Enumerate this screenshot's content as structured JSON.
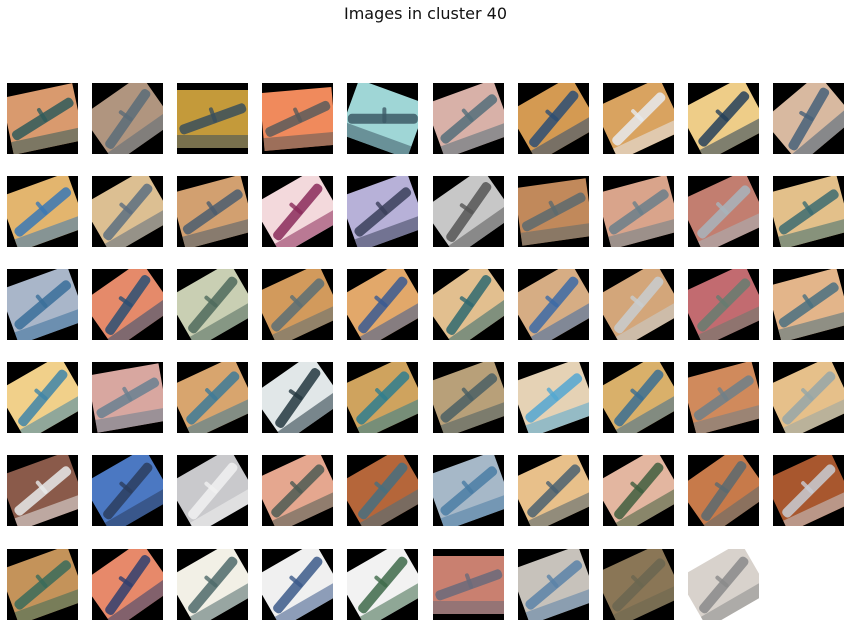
{
  "title": "Images in cluster 40",
  "tiles": [
    {
      "bg": "#d99a6e",
      "fg": "#2f5b5b",
      "angle": -12,
      "frame": "black"
    },
    {
      "bg": "#b0957f",
      "fg": "#5b6c78",
      "angle": -35,
      "frame": "black"
    },
    {
      "bg": "#c49a3a",
      "fg": "#3a4f5c",
      "angle": 0,
      "frame": "black"
    },
    {
      "bg": "#f08a5c",
      "fg": "#5a5a5a",
      "angle": -5,
      "frame": "black"
    },
    {
      "bg": "#9fd6d6",
      "fg": "#3c5a66",
      "angle": 20,
      "frame": "black"
    },
    {
      "bg": "#d8b1a8",
      "fg": "#556f7a",
      "angle": -20,
      "frame": "black"
    },
    {
      "bg": "#d49a52",
      "fg": "#2c4e74",
      "angle": -30,
      "frame": "black"
    },
    {
      "bg": "#d9a360",
      "fg": "#e6eaee",
      "angle": -25,
      "frame": "black"
    },
    {
      "bg": "#eecd88",
      "fg": "#24405a",
      "angle": -28,
      "frame": "black"
    },
    {
      "bg": "#d8b9a0",
      "fg": "#466079",
      "angle": -40,
      "frame": "black"
    },
    {
      "bg": "#e3b56e",
      "fg": "#3a78b5",
      "angle": -20,
      "frame": "black"
    },
    {
      "bg": "#dcbf92",
      "fg": "#5c6e80",
      "angle": -30,
      "frame": "black"
    },
    {
      "bg": "#d2a070",
      "fg": "#4b5d6e",
      "angle": -15,
      "frame": "black"
    },
    {
      "bg": "#f3d9dc",
      "fg": "#8a2a5a",
      "angle": -30,
      "frame": "black"
    },
    {
      "bg": "#b7b1d8",
      "fg": "#3a3f5a",
      "angle": -20,
      "frame": "black"
    },
    {
      "bg": "#c7c7c7",
      "fg": "#555555",
      "angle": -35,
      "frame": "black"
    },
    {
      "bg": "#c1895b",
      "fg": "#5c6a6e",
      "angle": -8,
      "frame": "black"
    },
    {
      "bg": "#d9a48b",
      "fg": "#6a7f8a",
      "angle": -15,
      "frame": "black"
    },
    {
      "bg": "#c27e70",
      "fg": "#a8b4bc",
      "angle": -25,
      "frame": "black"
    },
    {
      "bg": "#e3c08a",
      "fg": "#3c6b70",
      "angle": -15,
      "frame": "black"
    },
    {
      "bg": "#a9b6c9",
      "fg": "#3a6f9a",
      "angle": -20,
      "frame": "black"
    },
    {
      "bg": "#e58a6a",
      "fg": "#2c4f73",
      "angle": -35,
      "frame": "black"
    },
    {
      "bg": "#c9cfb3",
      "fg": "#4f6a5c",
      "angle": -30,
      "frame": "black"
    },
    {
      "bg": "#d29a5c",
      "fg": "#5c6f74",
      "angle": -25,
      "frame": "black"
    },
    {
      "bg": "#e2a86a",
      "fg": "#3a5a92",
      "angle": -30,
      "frame": "black"
    },
    {
      "bg": "#e2bf8f",
      "fg": "#2f6970",
      "angle": -35,
      "frame": "black"
    },
    {
      "bg": "#d6ad84",
      "fg": "#3c6aa6",
      "angle": -30,
      "frame": "black"
    },
    {
      "bg": "#d3a67a",
      "fg": "#c8cdd0",
      "angle": -30,
      "frame": "black"
    },
    {
      "bg": "#c26b70",
      "fg": "#667c70",
      "angle": -25,
      "frame": "black"
    },
    {
      "bg": "#e3b58a",
      "fg": "#4a7080",
      "angle": -15,
      "frame": "black"
    },
    {
      "bg": "#f1d08a",
      "fg": "#3f85a8",
      "angle": -30,
      "frame": "black"
    },
    {
      "bg": "#d8a7a0",
      "fg": "#6a8090",
      "angle": -10,
      "frame": "black"
    },
    {
      "bg": "#d8a56e",
      "fg": "#3e7a98",
      "angle": -25,
      "frame": "black"
    },
    {
      "bg": "#e1e7e8",
      "fg": "#23373f",
      "angle": -35,
      "frame": "black"
    },
    {
      "bg": "#cfa35e",
      "fg": "#2f7e8e",
      "angle": -25,
      "frame": "black"
    },
    {
      "bg": "#b8a079",
      "fg": "#4a5f64",
      "angle": -20,
      "frame": "black"
    },
    {
      "bg": "#e5d2b5",
      "fg": "#53a7d2",
      "angle": -20,
      "frame": "black"
    },
    {
      "bg": "#d9b06a",
      "fg": "#3a6e92",
      "angle": -30,
      "frame": "black"
    },
    {
      "bg": "#d08a5c",
      "fg": "#6f7f88",
      "angle": -15,
      "frame": "black"
    },
    {
      "bg": "#e6c08a",
      "fg": "#95a6a8",
      "angle": -25,
      "frame": "black"
    },
    {
      "bg": "#8a5a4a",
      "fg": "#e8eaea",
      "angle": -20,
      "frame": "black"
    },
    {
      "bg": "#4b78c2",
      "fg": "#2c3d5e",
      "angle": -30,
      "frame": "black"
    },
    {
      "bg": "#c9c9cc",
      "fg": "#f1f1f1",
      "angle": -30,
      "frame": "black"
    },
    {
      "bg": "#e5a78f",
      "fg": "#4d5b54",
      "angle": -25,
      "frame": "black"
    },
    {
      "bg": "#b5663a",
      "fg": "#476f80",
      "angle": -30,
      "frame": "black"
    },
    {
      "bg": "#a6b8c8",
      "fg": "#4a7ca4",
      "angle": -20,
      "frame": "black"
    },
    {
      "bg": "#e8c08a",
      "fg": "#4a6070",
      "angle": -25,
      "frame": "black"
    },
    {
      "bg": "#e3b6a0",
      "fg": "#3f5e3e",
      "angle": -30,
      "frame": "black"
    },
    {
      "bg": "#c77a4a",
      "fg": "#5a6a70",
      "angle": -35,
      "frame": "black"
    },
    {
      "bg": "#a8572e",
      "fg": "#c9ccd4",
      "angle": -25,
      "frame": "black"
    },
    {
      "bg": "#c4935a",
      "fg": "#3a6b5a",
      "angle": -20,
      "frame": "black"
    },
    {
      "bg": "#e7896a",
      "fg": "#2f3f6e",
      "angle": -35,
      "frame": "black"
    },
    {
      "bg": "#f2f0e6",
      "fg": "#4f6a6a",
      "angle": -30,
      "frame": "black"
    },
    {
      "bg": "#f0f0f0",
      "fg": "#3c5a8a",
      "angle": -30,
      "frame": "black"
    },
    {
      "bg": "#f2f2f2",
      "fg": "#3e6a4a",
      "angle": -30,
      "frame": "black"
    },
    {
      "bg": "#c98070",
      "fg": "#6a6a7a",
      "angle": 0,
      "frame": "black"
    },
    {
      "bg": "#c7c2bb",
      "fg": "#5a82a8",
      "angle": -20,
      "frame": "black"
    },
    {
      "bg": "#8a7656",
      "fg": "#6a6650",
      "angle": -25,
      "frame": "black"
    },
    {
      "bg": "#d8d2cc",
      "fg": "#8a8a8a",
      "angle": -30,
      "frame": "white"
    }
  ]
}
